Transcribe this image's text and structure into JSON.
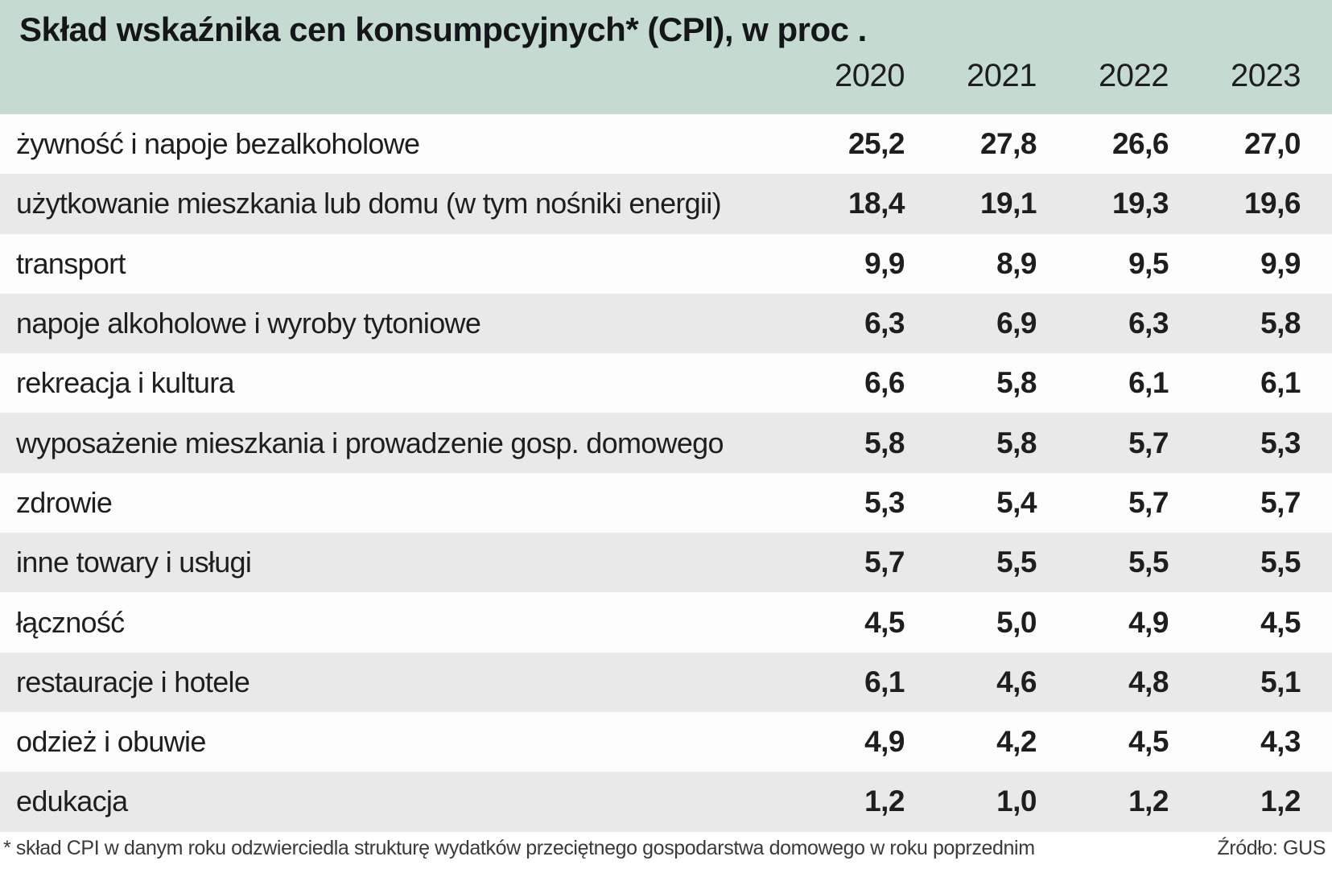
{
  "title": "Skład wskaźnika cen konsumpcyjnych* (CPI), w proc .",
  "table": {
    "years": [
      "2020",
      "2021",
      "2022",
      "2023"
    ],
    "rows": [
      {
        "label": "żywność i napoje bezalkoholowe",
        "values": [
          "25,2",
          "27,8",
          "26,6",
          "27,0"
        ]
      },
      {
        "label": "użytkowanie mieszkania lub domu (w tym nośniki energii)",
        "values": [
          "18,4",
          "19,1",
          "19,3",
          "19,6"
        ]
      },
      {
        "label": "transport",
        "values": [
          "9,9",
          "8,9",
          "9,5",
          "9,9"
        ]
      },
      {
        "label": "napoje alkoholowe i wyroby tytoniowe",
        "values": [
          "6,3",
          "6,9",
          "6,3",
          "5,8"
        ]
      },
      {
        "label": "rekreacja i kultura",
        "values": [
          "6,6",
          "5,8",
          "6,1",
          "6,1"
        ]
      },
      {
        "label": "wyposażenie mieszkania i prowadzenie gosp. domowego",
        "values": [
          "5,8",
          "5,8",
          "5,7",
          "5,3"
        ]
      },
      {
        "label": "zdrowie",
        "values": [
          "5,3",
          "5,4",
          "5,7",
          "5,7"
        ]
      },
      {
        "label": "inne towary i usługi",
        "values": [
          "5,7",
          "5,5",
          "5,5",
          "5,5"
        ]
      },
      {
        "label": "łączność",
        "values": [
          "4,5",
          "5,0",
          "4,9",
          "4,5"
        ]
      },
      {
        "label": "restauracje i hotele",
        "values": [
          "6,1",
          "4,6",
          "4,8",
          "5,1"
        ]
      },
      {
        "label": "odzież i obuwie",
        "values": [
          "4,9",
          "4,2",
          "4,5",
          "4,3"
        ]
      },
      {
        "label": "edukacja",
        "values": [
          "1,2",
          "1,0",
          "1,2",
          "1,2"
        ]
      }
    ]
  },
  "footnote": "* skład CPI w danym roku odzwierciedla strukturę wydatków przeciętnego gospodarstwa domowego w roku poprzednim",
  "source": "Źródło: GUS",
  "colors": {
    "header_background": "#c5dbd2",
    "row_alt_background": "#e9e9e9",
    "row_background": "#fdfdfd",
    "text": "#1d1e20",
    "footnote_text": "#3a3a3a"
  },
  "chart_data": {
    "type": "table",
    "title": "Skład wskaźnika cen konsumpcyjnych* (CPI), w proc .",
    "categories": [
      "2020",
      "2021",
      "2022",
      "2023"
    ],
    "series": [
      {
        "name": "żywność i napoje bezalkoholowe",
        "values": [
          25.2,
          27.8,
          26.6,
          27.0
        ]
      },
      {
        "name": "użytkowanie mieszkania lub domu (w tym nośniki energii)",
        "values": [
          18.4,
          19.1,
          19.3,
          19.6
        ]
      },
      {
        "name": "transport",
        "values": [
          9.9,
          8.9,
          9.5,
          9.9
        ]
      },
      {
        "name": "napoje alkoholowe i wyroby tytoniowe",
        "values": [
          6.3,
          6.9,
          6.3,
          5.8
        ]
      },
      {
        "name": "rekreacja i kultura",
        "values": [
          6.6,
          5.8,
          6.1,
          6.1
        ]
      },
      {
        "name": "wyposażenie mieszkania i prowadzenie gosp. domowego",
        "values": [
          5.8,
          5.8,
          5.7,
          5.3
        ]
      },
      {
        "name": "zdrowie",
        "values": [
          5.3,
          5.4,
          5.7,
          5.7
        ]
      },
      {
        "name": "inne towary i usługi",
        "values": [
          5.7,
          5.5,
          5.5,
          5.5
        ]
      },
      {
        "name": "łączność",
        "values": [
          4.5,
          5.0,
          4.9,
          4.5
        ]
      },
      {
        "name": "restauracje i hotele",
        "values": [
          6.1,
          4.6,
          4.8,
          5.1
        ]
      },
      {
        "name": "odzież i obuwie",
        "values": [
          4.9,
          4.2,
          4.5,
          4.3
        ]
      },
      {
        "name": "edukacja",
        "values": [
          1.2,
          1.0,
          1.2,
          1.2
        ]
      }
    ],
    "footnote": "* skład CPI w danym roku odzwierciedla strukturę wydatków przeciętnego gospodarstwa domowego w roku poprzednim",
    "source": "Źródło: GUS"
  }
}
